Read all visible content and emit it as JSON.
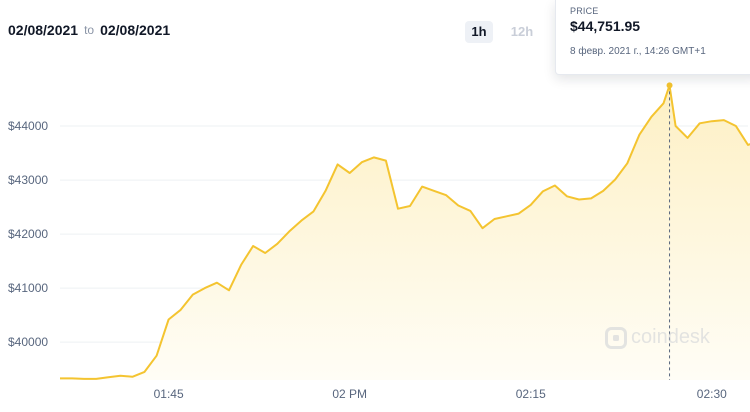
{
  "range": {
    "from": "02/08/2021",
    "to_word": "to",
    "to": "02/08/2021"
  },
  "timeframes": [
    {
      "label": "1h",
      "active": true
    },
    {
      "label": "12h",
      "active": false
    }
  ],
  "tooltip": {
    "label": "PRICE",
    "price": "$44,751.95",
    "timestamp": "8 февр. 2021 г., 14:26 GMT+1"
  },
  "watermark": "coindesk",
  "colors": {
    "line": "#f4c430",
    "fill_top": "#fdf0c4",
    "fill_bottom": "#fffdf6",
    "grid": "#eef0f3",
    "tick_text": "#58667e",
    "crosshair": "#58667e"
  },
  "chart_data": {
    "type": "area",
    "title": "",
    "xlabel": "",
    "ylabel": "",
    "x_unit": "time",
    "xlim": [
      "13:36",
      "14:33"
    ],
    "ylim": [
      39300,
      45000
    ],
    "x_ticks": [
      {
        "label": "01:45",
        "t": "13:45"
      },
      {
        "label": "02 PM",
        "t": "14:00"
      },
      {
        "label": "02:15",
        "t": "14:15"
      },
      {
        "label": "02:30",
        "t": "14:30"
      }
    ],
    "y_ticks": [
      {
        "label": "$40000",
        "v": 40000
      },
      {
        "label": "$41000",
        "v": 41000
      },
      {
        "label": "$42000",
        "v": 42000
      },
      {
        "label": "$43000",
        "v": 43000
      },
      {
        "label": "$44000",
        "v": 44000
      }
    ],
    "grid": true,
    "highlight": {
      "t": "14:26",
      "v": 44751.95
    },
    "series": [
      {
        "points": [
          [
            "13:36",
            39330
          ],
          [
            "13:37",
            39330
          ],
          [
            "13:38",
            39320
          ],
          [
            "13:39",
            39320
          ],
          [
            "13:40",
            39350
          ],
          [
            "13:41",
            39380
          ],
          [
            "13:42",
            39360
          ],
          [
            "13:43",
            39450
          ],
          [
            "13:44",
            39750
          ],
          [
            "13:45",
            40420
          ],
          [
            "13:46",
            40600
          ],
          [
            "13:47",
            40880
          ],
          [
            "13:48",
            41000
          ],
          [
            "13:49",
            41100
          ],
          [
            "13:50",
            40960
          ],
          [
            "13:51",
            41430
          ],
          [
            "13:52",
            41780
          ],
          [
            "13:53",
            41650
          ],
          [
            "13:54",
            41820
          ],
          [
            "13:55",
            42050
          ],
          [
            "13:56",
            42250
          ],
          [
            "13:57",
            42420
          ],
          [
            "13:58",
            42800
          ],
          [
            "13:59",
            43290
          ],
          [
            "14:00",
            43130
          ],
          [
            "14:01",
            43330
          ],
          [
            "14:02",
            43420
          ],
          [
            "14:03",
            43360
          ],
          [
            "14:04",
            42470
          ],
          [
            "14:05",
            42520
          ],
          [
            "14:06",
            42880
          ],
          [
            "14:07",
            42800
          ],
          [
            "14:08",
            42720
          ],
          [
            "14:09",
            42530
          ],
          [
            "14:10",
            42430
          ],
          [
            "14:11",
            42110
          ],
          [
            "14:12",
            42280
          ],
          [
            "14:13",
            42330
          ],
          [
            "14:14",
            42380
          ],
          [
            "14:15",
            42540
          ],
          [
            "14:16",
            42790
          ],
          [
            "14:17",
            42900
          ],
          [
            "14:18",
            42700
          ],
          [
            "14:19",
            42640
          ],
          [
            "14:20",
            42660
          ],
          [
            "14:21",
            42800
          ],
          [
            "14:22",
            43010
          ],
          [
            "14:23",
            43310
          ],
          [
            "14:24",
            43840
          ],
          [
            "14:25",
            44170
          ],
          [
            "14:26",
            44420
          ],
          [
            "14:26.5",
            44751.95
          ],
          [
            "14:27",
            44000
          ],
          [
            "14:28",
            43780
          ],
          [
            "14:29",
            44050
          ],
          [
            "14:30",
            44090
          ],
          [
            "14:31",
            44110
          ],
          [
            "14:32",
            44000
          ],
          [
            "14:33",
            43650
          ],
          [
            "14:33.9",
            43720
          ]
        ]
      }
    ]
  }
}
